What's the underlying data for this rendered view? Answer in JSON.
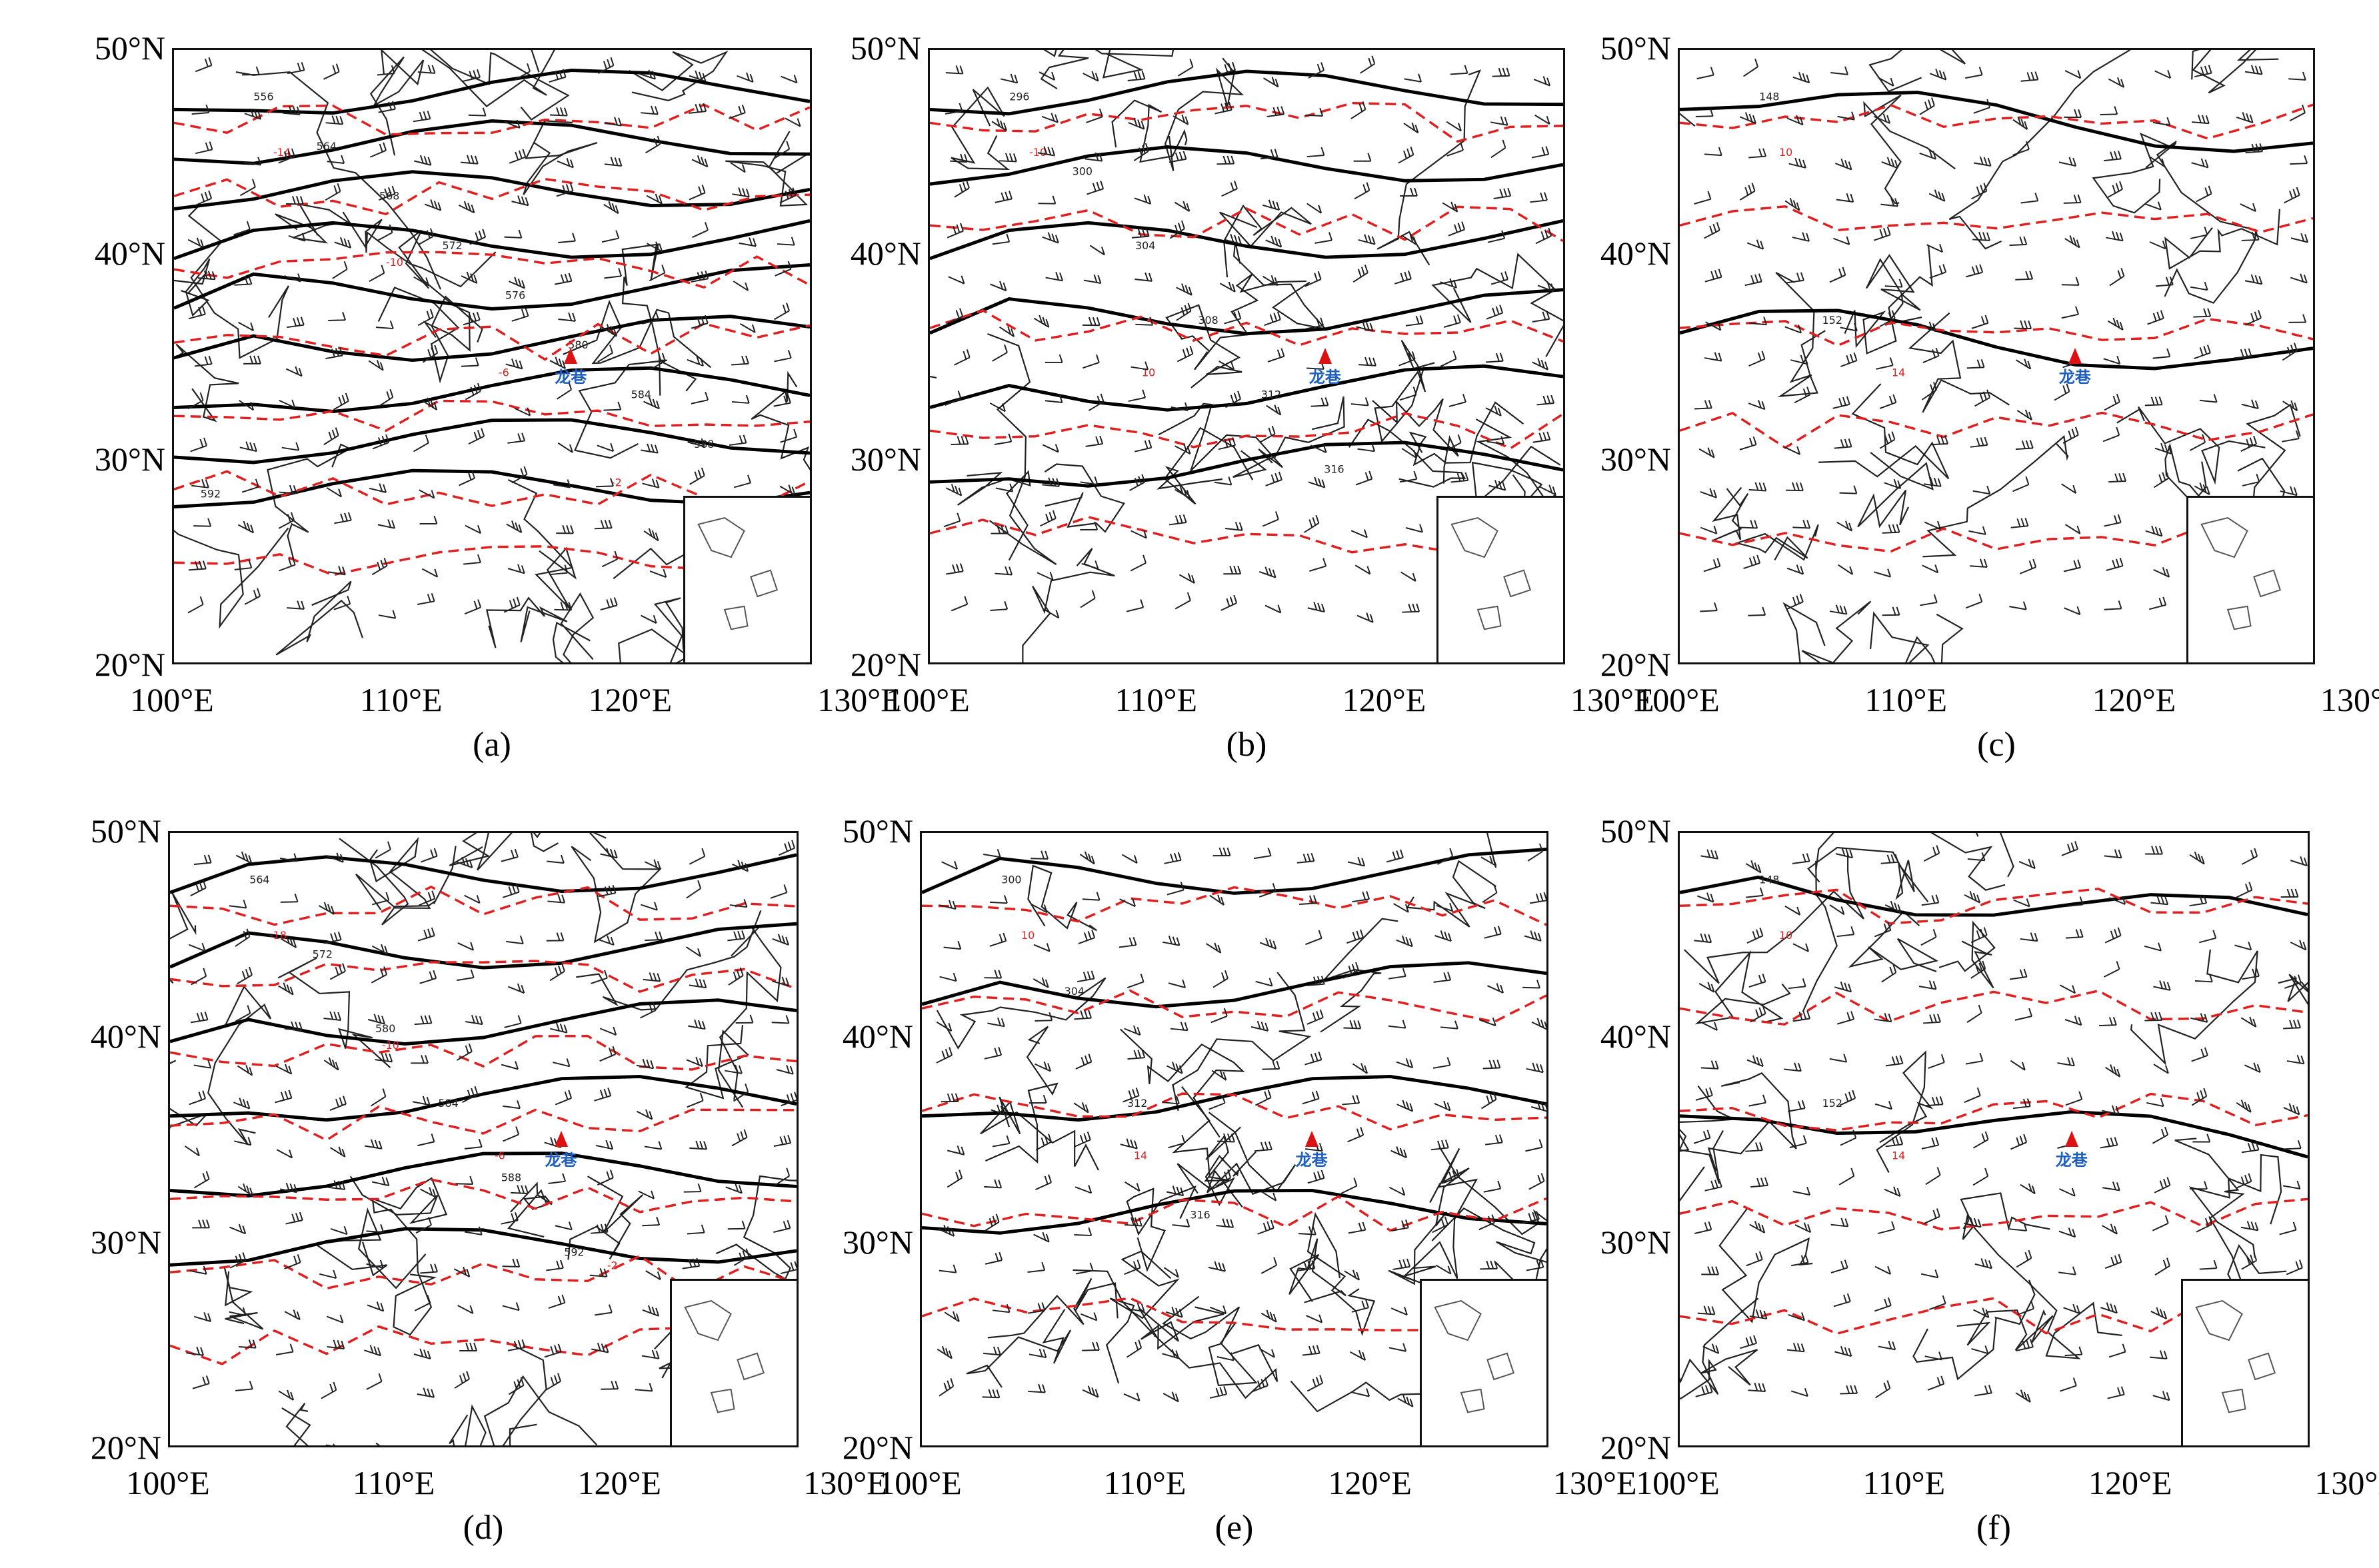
{
  "axis": {
    "lat_labels": [
      "50°N",
      "40°N",
      "30°N",
      "20°N"
    ],
    "lon_labels": [
      "100°E",
      "110°E",
      "120°E",
      "130°E"
    ]
  },
  "station": {
    "label": "龙巷"
  },
  "colors": {
    "contour": "#000000",
    "dashed": "#e02020",
    "station_label": "#1f5fbf",
    "station_mark": "#d11111"
  },
  "panels": [
    {
      "caption": "(a)",
      "solid_labels": [
        "556",
        "564",
        "568",
        "572",
        "576",
        "580",
        "584",
        "588",
        "592"
      ],
      "dashed_labels": [
        "-14",
        "-10",
        "-6",
        "-2"
      ]
    },
    {
      "caption": "(b)",
      "solid_labels": [
        "296",
        "300",
        "304",
        "308",
        "312",
        "316"
      ],
      "dashed_labels": [
        "-10",
        "10"
      ]
    },
    {
      "caption": "(c)",
      "solid_labels": [
        "148",
        "152"
      ],
      "dashed_labels": [
        "10",
        "14"
      ]
    },
    {
      "caption": "(d)",
      "solid_labels": [
        "564",
        "572",
        "580",
        "584",
        "588",
        "592"
      ],
      "dashed_labels": [
        "-18",
        "-10",
        "-6",
        "-2"
      ]
    },
    {
      "caption": "(e)",
      "solid_labels": [
        "300",
        "304",
        "312",
        "316"
      ],
      "dashed_labels": [
        "10",
        "14"
      ]
    },
    {
      "caption": "(f)",
      "solid_labels": [
        "148",
        "152"
      ],
      "dashed_labels": [
        "10",
        "14"
      ]
    }
  ]
}
